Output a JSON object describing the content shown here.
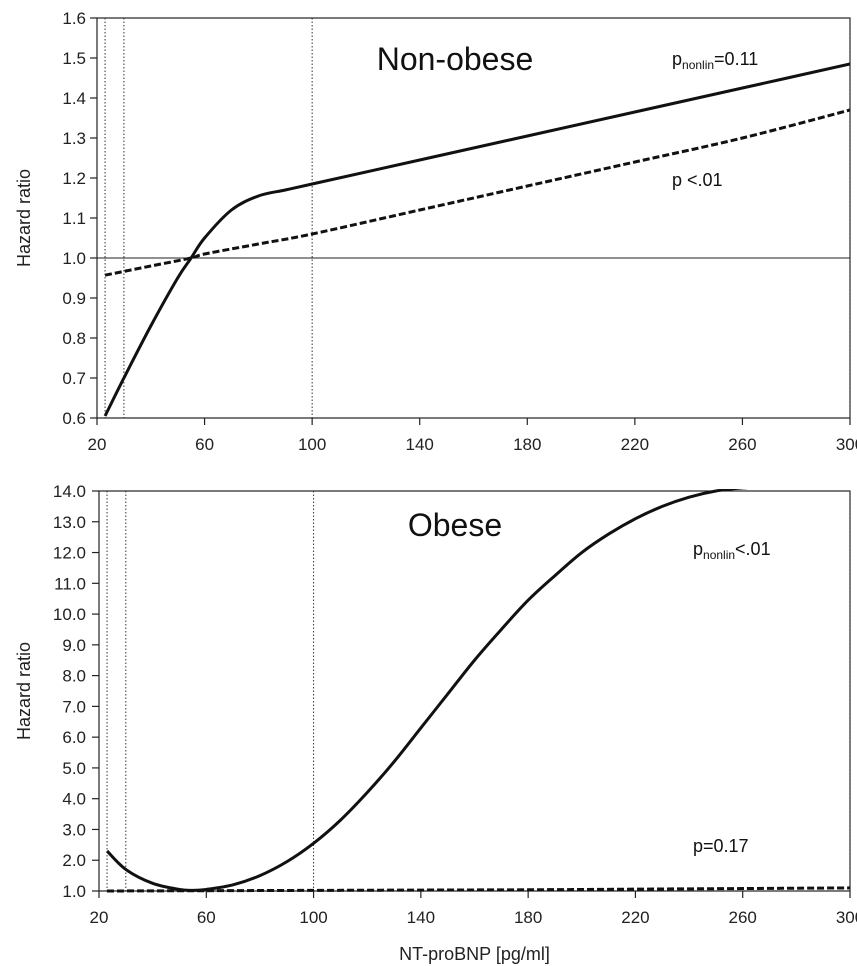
{
  "chart_data": [
    {
      "type": "line",
      "title": "Non-obese",
      "xlabel": "",
      "ylabel": "Hazard ratio",
      "xlim": [
        20,
        300
      ],
      "ylim": [
        0.6,
        1.6
      ],
      "xticks": [
        20,
        60,
        100,
        140,
        180,
        220,
        260,
        300
      ],
      "xtick_labels": [
        "20",
        "60",
        "100",
        "140",
        "180",
        "220",
        "260",
        "300"
      ],
      "yticks": [
        0.6,
        0.7,
        0.8,
        0.9,
        1.0,
        1.1,
        1.2,
        1.3,
        1.4,
        1.5,
        1.6
      ],
      "ytick_labels": [
        "0.6",
        "0.7",
        "0.8",
        "0.9",
        "1.0",
        "1.1",
        "1.2",
        "1.3",
        "1.4",
        "1.5",
        "1.6"
      ],
      "reference_line": 1.0,
      "vlines": [
        23,
        30,
        100,
        300
      ],
      "grid": false,
      "series": [
        {
          "style": "solid",
          "x": [
            23,
            30,
            40,
            50,
            55,
            60,
            70,
            80,
            90,
            100,
            140,
            180,
            220,
            260,
            300
          ],
          "y": [
            0.605,
            0.7,
            0.83,
            0.95,
            1.0,
            1.05,
            1.12,
            1.155,
            1.17,
            1.185,
            1.245,
            1.305,
            1.365,
            1.425,
            1.485
          ]
        },
        {
          "style": "dashed",
          "x": [
            23,
            40,
            55,
            60,
            80,
            100,
            140,
            180,
            220,
            260,
            300
          ],
          "y": [
            0.957,
            0.98,
            1.0,
            1.01,
            1.035,
            1.06,
            1.12,
            1.18,
            1.24,
            1.3,
            1.37
          ]
        }
      ],
      "annotations": [
        {
          "main": "p",
          "sub": "nonlin",
          "rest": "=0.11"
        },
        {
          "main": "p <.01",
          "sub": "",
          "rest": ""
        }
      ]
    },
    {
      "type": "line",
      "title": "Obese",
      "xlabel": "NT-proBNP [pg/ml]",
      "ylabel": "Hazard ratio",
      "xlim": [
        20,
        300
      ],
      "ylim": [
        1.0,
        14.0
      ],
      "xticks": [
        20,
        60,
        100,
        140,
        180,
        220,
        260,
        300
      ],
      "xtick_labels": [
        "20",
        "60",
        "100",
        "140",
        "180",
        "220",
        "260",
        "300"
      ],
      "yticks": [
        1.0,
        2.0,
        3.0,
        4.0,
        5.0,
        6.0,
        7.0,
        8.0,
        9.0,
        10.0,
        11.0,
        12.0,
        13.0,
        14.0
      ],
      "ytick_labels": [
        "1.0",
        "2.0",
        "3.0",
        "4.0",
        "5.0",
        "6.0",
        "7.0",
        "8.0",
        "9.0",
        "10.0",
        "11.0",
        "12.0",
        "13.0",
        "14.0"
      ],
      "vlines": [
        23,
        30,
        100,
        300
      ],
      "grid": false,
      "series": [
        {
          "style": "solid",
          "x": [
            23,
            30,
            40,
            50,
            55,
            60,
            70,
            80,
            90,
            100,
            110,
            120,
            130,
            140,
            150,
            160,
            170,
            180,
            190,
            200,
            210,
            220,
            230,
            240,
            250,
            260,
            270,
            280,
            290,
            300
          ],
          "y": [
            2.3,
            1.7,
            1.25,
            1.05,
            1.02,
            1.05,
            1.2,
            1.5,
            1.95,
            2.55,
            3.3,
            4.2,
            5.2,
            6.3,
            7.4,
            8.5,
            9.5,
            10.45,
            11.25,
            12.0,
            12.6,
            13.1,
            13.5,
            13.8,
            14.0,
            14.1,
            14.15,
            14.15,
            14.15,
            14.15
          ]
        },
        {
          "style": "dashed",
          "x": [
            23,
            60,
            100,
            140,
            180,
            220,
            260,
            300
          ],
          "y": [
            1.0,
            1.01,
            1.02,
            1.03,
            1.04,
            1.06,
            1.08,
            1.1
          ]
        }
      ],
      "annotations": [
        {
          "main": "p",
          "sub": "nonlin",
          "rest": "<.01"
        },
        {
          "main": "p=0.17",
          "sub": "",
          "rest": ""
        }
      ]
    }
  ]
}
